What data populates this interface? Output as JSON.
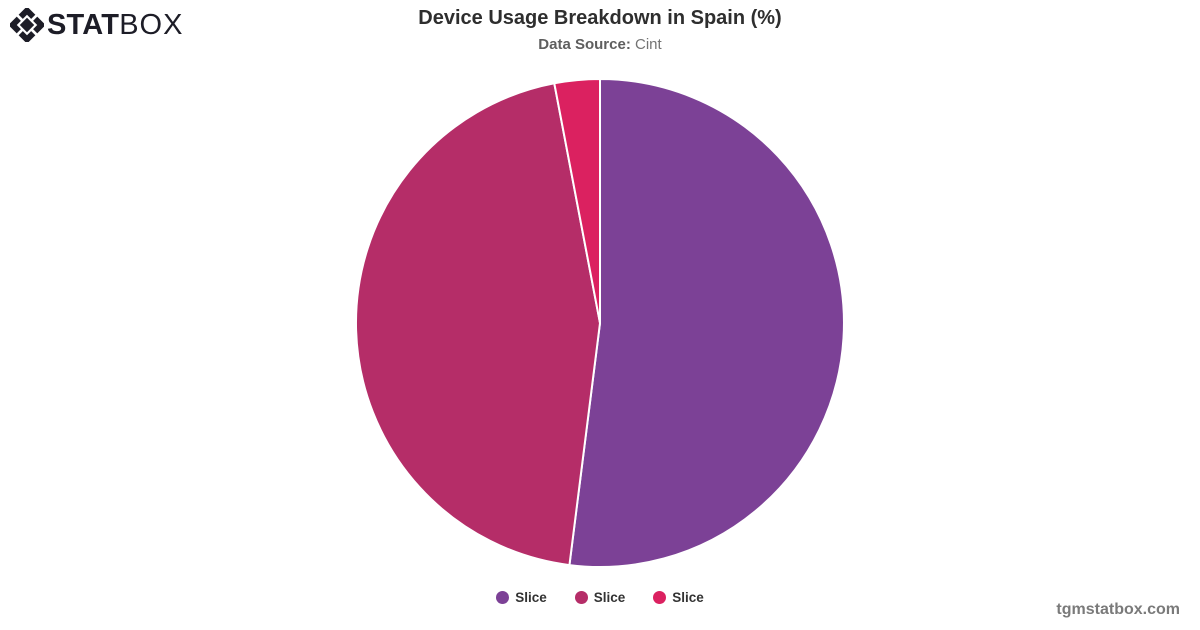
{
  "brand": {
    "name_stat": "STAT",
    "name_box": "BOX",
    "logo_color": "#1d1d27"
  },
  "header": {
    "title": "Device Usage Breakdown in Spain (%)",
    "subtitle_label": "Data Source:",
    "subtitle_value": "Cint"
  },
  "footer": {
    "watermark": "tgmstatbox.com"
  },
  "chart_data": {
    "type": "pie",
    "title": "Device Usage Breakdown in Spain (%)",
    "data_source": "Cint",
    "start_angle_deg": 0,
    "direction": "clockwise",
    "legend_position": "bottom",
    "slice_border_color": "#ffffff",
    "slices": [
      {
        "label": "Slice",
        "value": 52,
        "color": "#7c4196"
      },
      {
        "label": "Slice",
        "value": 45,
        "color": "#b52d68"
      },
      {
        "label": "Slice",
        "value": 3,
        "color": "#db2160"
      }
    ]
  }
}
